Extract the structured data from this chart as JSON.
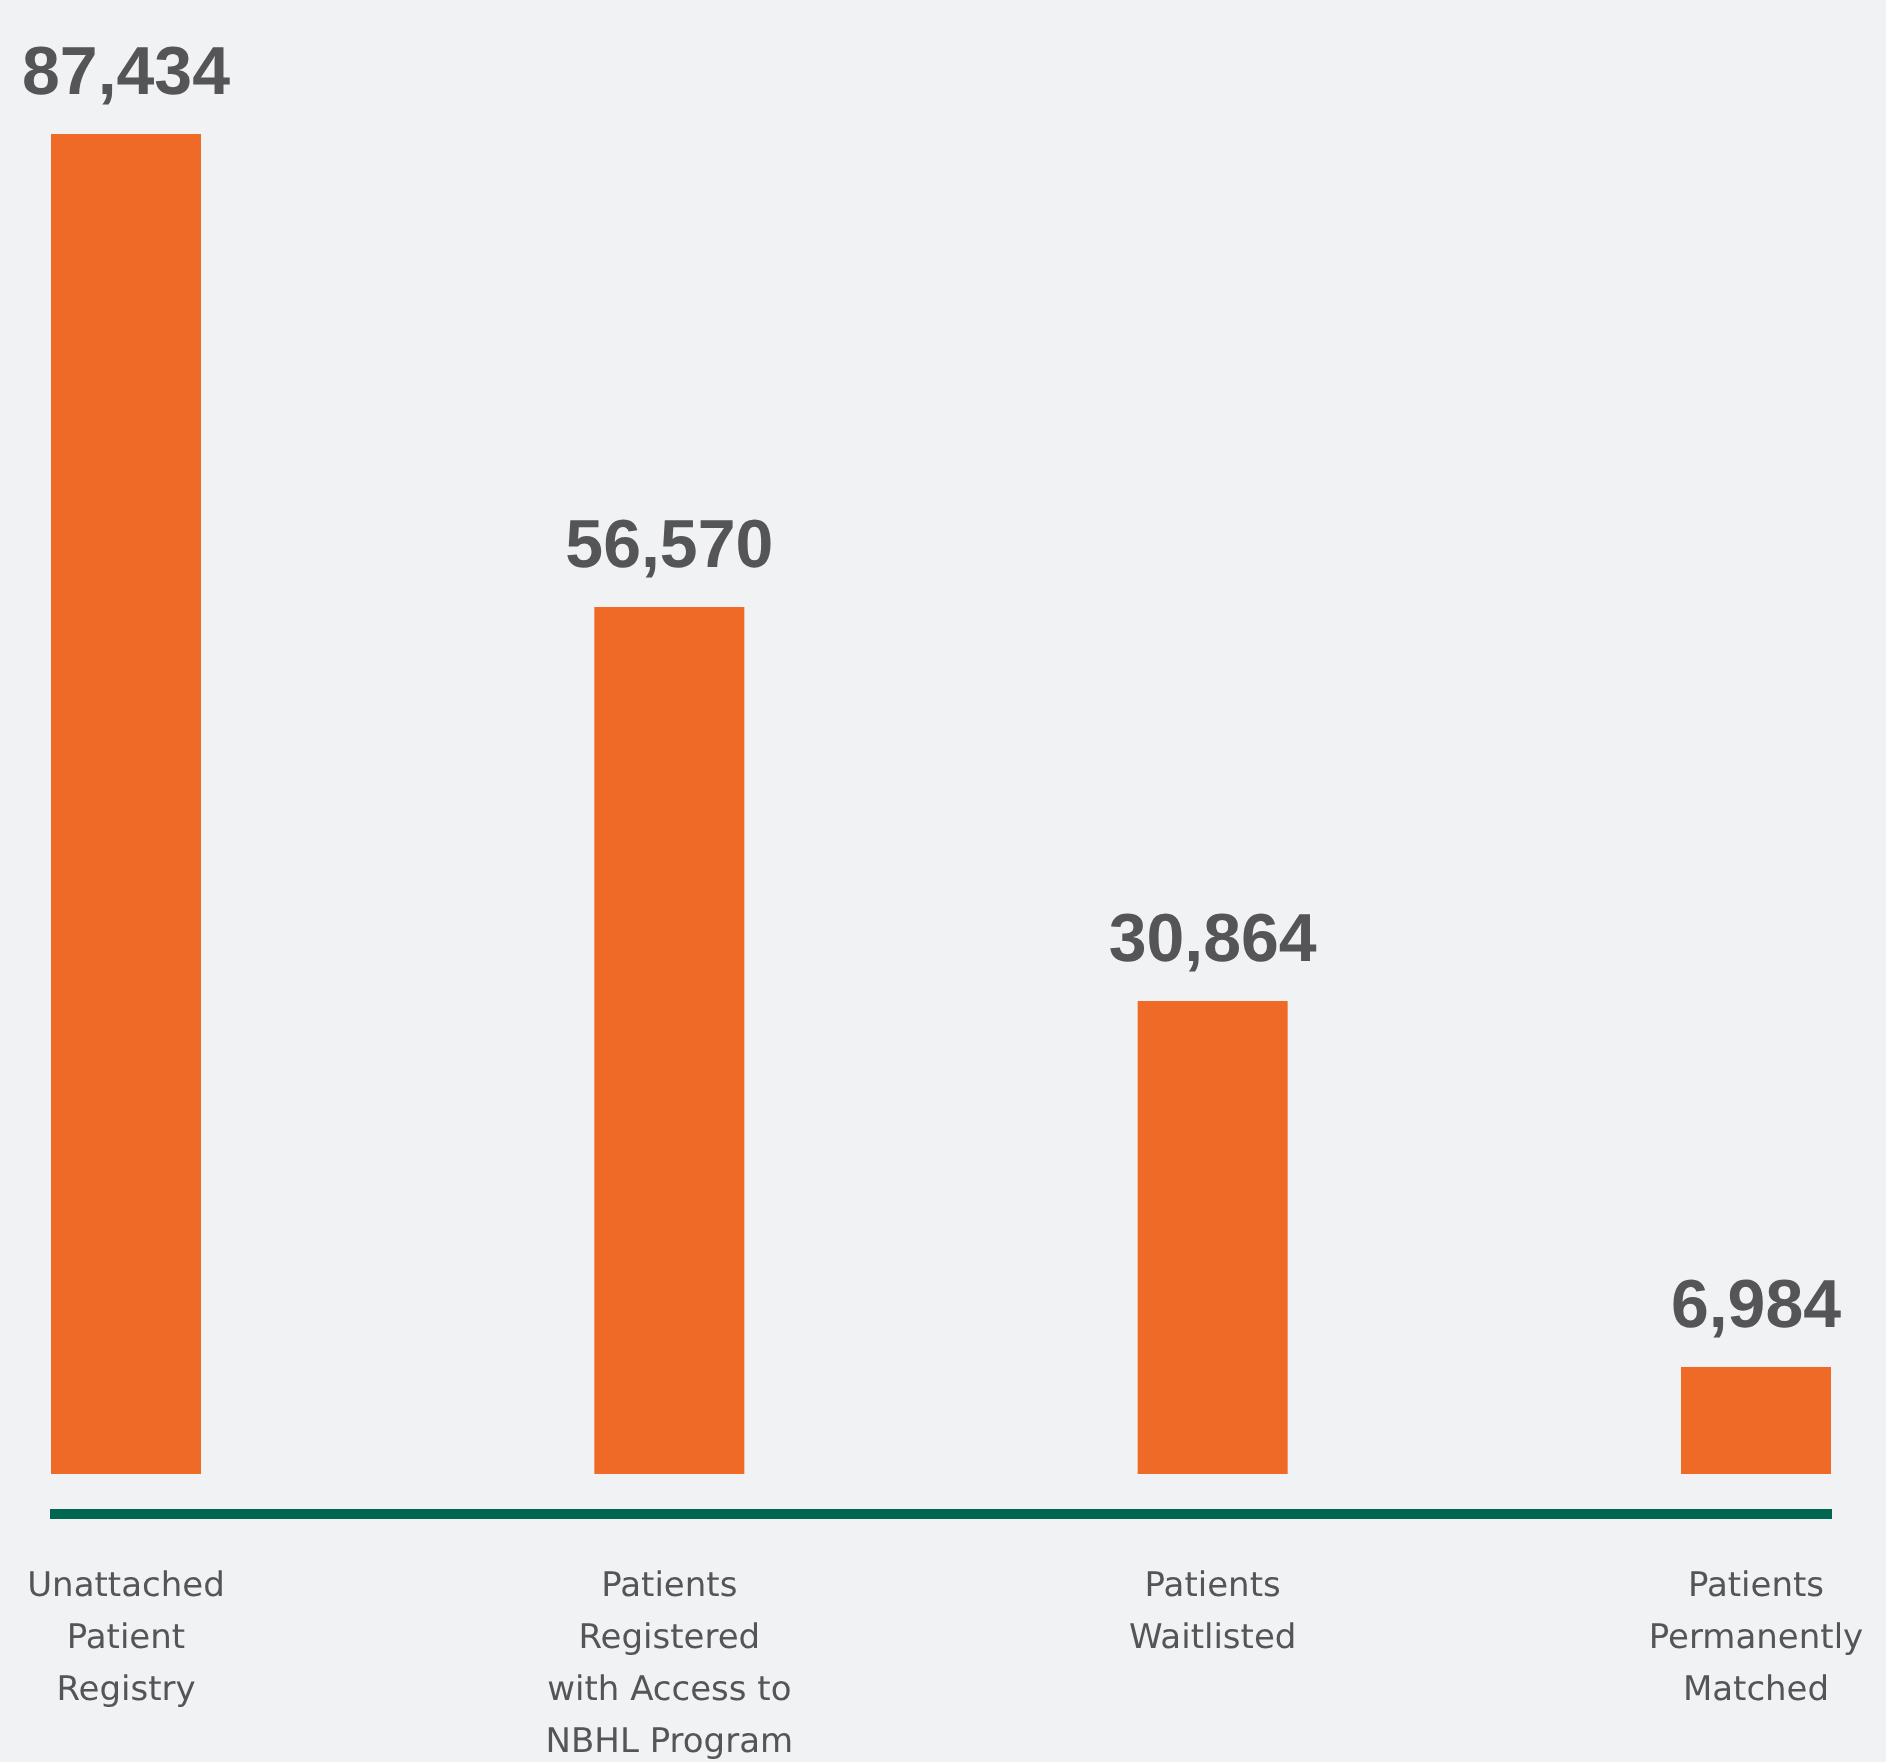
{
  "chart_data": {
    "type": "bar",
    "categories": [
      "Unattached Patient Registry",
      "Patients Registered with Access to NBHL Program",
      "Patients Waitlisted",
      "Patients Permanently Matched"
    ],
    "values": [
      87434,
      56570,
      30864,
      6984
    ],
    "value_labels": [
      "87,434",
      "56,570",
      "30,864",
      "6,984"
    ],
    "color": "#f06a27"
  }
}
